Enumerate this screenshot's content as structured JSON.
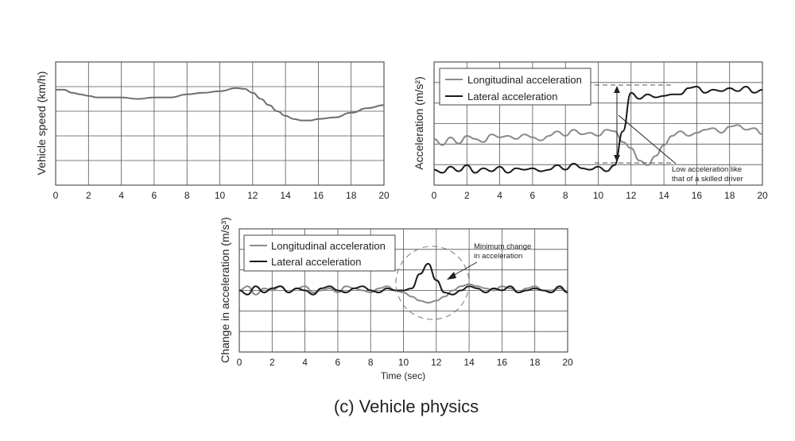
{
  "caption": "(c) Vehicle physics",
  "colors": {
    "longitudinal": "#8a8a8a",
    "lateral": "#1a1a1a",
    "speed": "#6e6e6e",
    "grid": "#555555"
  },
  "chart_data": [
    {
      "type": "line",
      "ylabel": "Vehicle speed (km/h)",
      "xlim": [
        0,
        20
      ],
      "xticks": [
        "0",
        "2",
        "4",
        "6",
        "8",
        "10",
        "12",
        "14",
        "16",
        "18",
        "20"
      ],
      "grid": true,
      "series": [
        {
          "x": [
            0,
            0.5,
            1,
            1.5,
            2,
            2.5,
            3,
            4,
            5,
            6,
            7,
            8,
            9,
            10,
            11,
            11.5,
            12,
            12.5,
            13,
            13.5,
            14,
            14.5,
            15,
            15.5,
            16,
            17,
            18,
            19,
            20
          ],
          "y": [
            6.2,
            6.2,
            6.0,
            5.9,
            5.8,
            5.7,
            5.7,
            5.7,
            5.6,
            5.7,
            5.7,
            5.9,
            6.0,
            6.1,
            6.3,
            6.25,
            6.0,
            5.6,
            5.2,
            4.8,
            4.5,
            4.3,
            4.2,
            4.2,
            4.3,
            4.4,
            4.7,
            5.0,
            5.2
          ]
        }
      ]
    },
    {
      "type": "line",
      "ylabel": "Acceleration (m/s²)",
      "xlim": [
        0,
        20
      ],
      "xticks": [
        "0",
        "2",
        "4",
        "6",
        "8",
        "10",
        "12",
        "14",
        "16",
        "18",
        "20"
      ],
      "grid": true,
      "legend": "top-left",
      "annotation": "Low acceleration like that of a skilled driver",
      "series": [
        {
          "name": "Longitudinal acceleration",
          "x": [
            0,
            0.5,
            1,
            1.5,
            2,
            2.5,
            3,
            3.5,
            4,
            4.5,
            5,
            5.5,
            6,
            6.5,
            7,
            7.5,
            8,
            8.5,
            9,
            9.5,
            10,
            10.5,
            11,
            11.5,
            12,
            12.5,
            13,
            13.5,
            14,
            14.5,
            15,
            15.5,
            16,
            16.5,
            17,
            17.5,
            18,
            18.5,
            19,
            19.5,
            20
          ],
          "y": [
            3.0,
            2.6,
            3.1,
            2.7,
            3.2,
            3.0,
            2.8,
            3.3,
            3.1,
            3.2,
            3.0,
            3.3,
            3.1,
            2.9,
            3.2,
            3.5,
            3.2,
            3.6,
            3.3,
            3.4,
            3.2,
            3.6,
            3.5,
            2.8,
            2.4,
            1.6,
            1.3,
            1.9,
            2.6,
            3.2,
            3.5,
            3.2,
            3.4,
            3.6,
            3.7,
            3.4,
            3.8,
            3.9,
            3.6,
            3.7,
            3.3
          ]
        },
        {
          "name": "Lateral acceleration",
          "x": [
            0,
            0.5,
            1,
            1.5,
            2,
            2.5,
            3,
            3.5,
            4,
            4.5,
            5,
            5.5,
            6,
            6.5,
            7,
            7.5,
            8,
            8.5,
            9,
            9.5,
            10,
            10.5,
            11,
            11.5,
            12,
            12.5,
            13,
            13.5,
            14,
            14.5,
            15,
            15.5,
            16,
            16.5,
            17,
            17.5,
            18,
            18.5,
            19,
            19.5,
            20
          ],
          "y": [
            1.0,
            0.8,
            1.2,
            0.9,
            1.3,
            0.8,
            1.1,
            0.9,
            1.2,
            0.8,
            1.1,
            1.0,
            1.1,
            0.9,
            1.0,
            1.3,
            1.0,
            1.4,
            1.1,
            1.0,
            1.2,
            0.9,
            1.3,
            3.5,
            6.0,
            5.6,
            5.9,
            5.7,
            5.8,
            5.9,
            5.9,
            6.3,
            6.4,
            6.0,
            6.2,
            6.1,
            6.3,
            6.1,
            6.4,
            6.0,
            6.2
          ]
        }
      ]
    },
    {
      "type": "line",
      "ylabel": "Change in acceleration (m/s³)",
      "xlabel": "Time (sec)",
      "xlim": [
        0,
        20
      ],
      "xticks": [
        "0",
        "2",
        "4",
        "6",
        "8",
        "10",
        "12",
        "14",
        "16",
        "18",
        "20"
      ],
      "grid": true,
      "legend": "top-left",
      "annotation": "Minimum change in acceleration",
      "series": [
        {
          "name": "Longitudinal acceleration",
          "x": [
            0,
            0.5,
            1,
            1.5,
            2,
            2.5,
            3,
            3.5,
            4,
            4.5,
            5,
            5.5,
            6,
            6.5,
            7,
            7.5,
            8,
            8.5,
            9,
            9.5,
            10,
            10.5,
            11,
            11.5,
            12,
            12.5,
            13,
            13.5,
            14,
            14.5,
            15,
            15.5,
            16,
            16.5,
            17,
            17.5,
            18,
            18.5,
            19,
            19.5,
            20
          ],
          "y": [
            3.0,
            3.2,
            2.8,
            3.1,
            3.0,
            3.2,
            2.9,
            3.1,
            3.2,
            2.9,
            3.0,
            3.1,
            2.9,
            3.2,
            3.1,
            3.0,
            2.9,
            3.1,
            3.2,
            3.0,
            2.9,
            2.7,
            2.5,
            2.4,
            2.5,
            2.7,
            3.0,
            3.2,
            3.3,
            3.2,
            3.1,
            3.0,
            3.2,
            3.1,
            2.9,
            3.1,
            3.2,
            3.0,
            3.0,
            3.1,
            2.9
          ]
        },
        {
          "name": "Lateral acceleration",
          "x": [
            0,
            0.5,
            1,
            1.5,
            2,
            2.5,
            3,
            3.5,
            4,
            4.5,
            5,
            5.5,
            6,
            6.5,
            7,
            7.5,
            8,
            8.5,
            9,
            9.5,
            10,
            10.5,
            11,
            11.5,
            12,
            12.5,
            13,
            13.5,
            14,
            14.5,
            15,
            15.5,
            16,
            16.5,
            17,
            17.5,
            18,
            18.5,
            19,
            19.5,
            20
          ],
          "y": [
            3.0,
            2.8,
            3.2,
            2.9,
            3.1,
            3.2,
            2.9,
            3.1,
            3.0,
            2.8,
            3.1,
            3.2,
            3.0,
            2.9,
            3.1,
            3.2,
            3.0,
            2.9,
            3.1,
            3.0,
            3.0,
            3.1,
            3.8,
            4.3,
            3.5,
            2.9,
            2.8,
            3.0,
            3.2,
            3.1,
            2.9,
            3.1,
            3.0,
            3.2,
            2.9,
            3.0,
            3.1,
            3.0,
            2.9,
            3.2,
            2.9
          ]
        }
      ]
    }
  ]
}
